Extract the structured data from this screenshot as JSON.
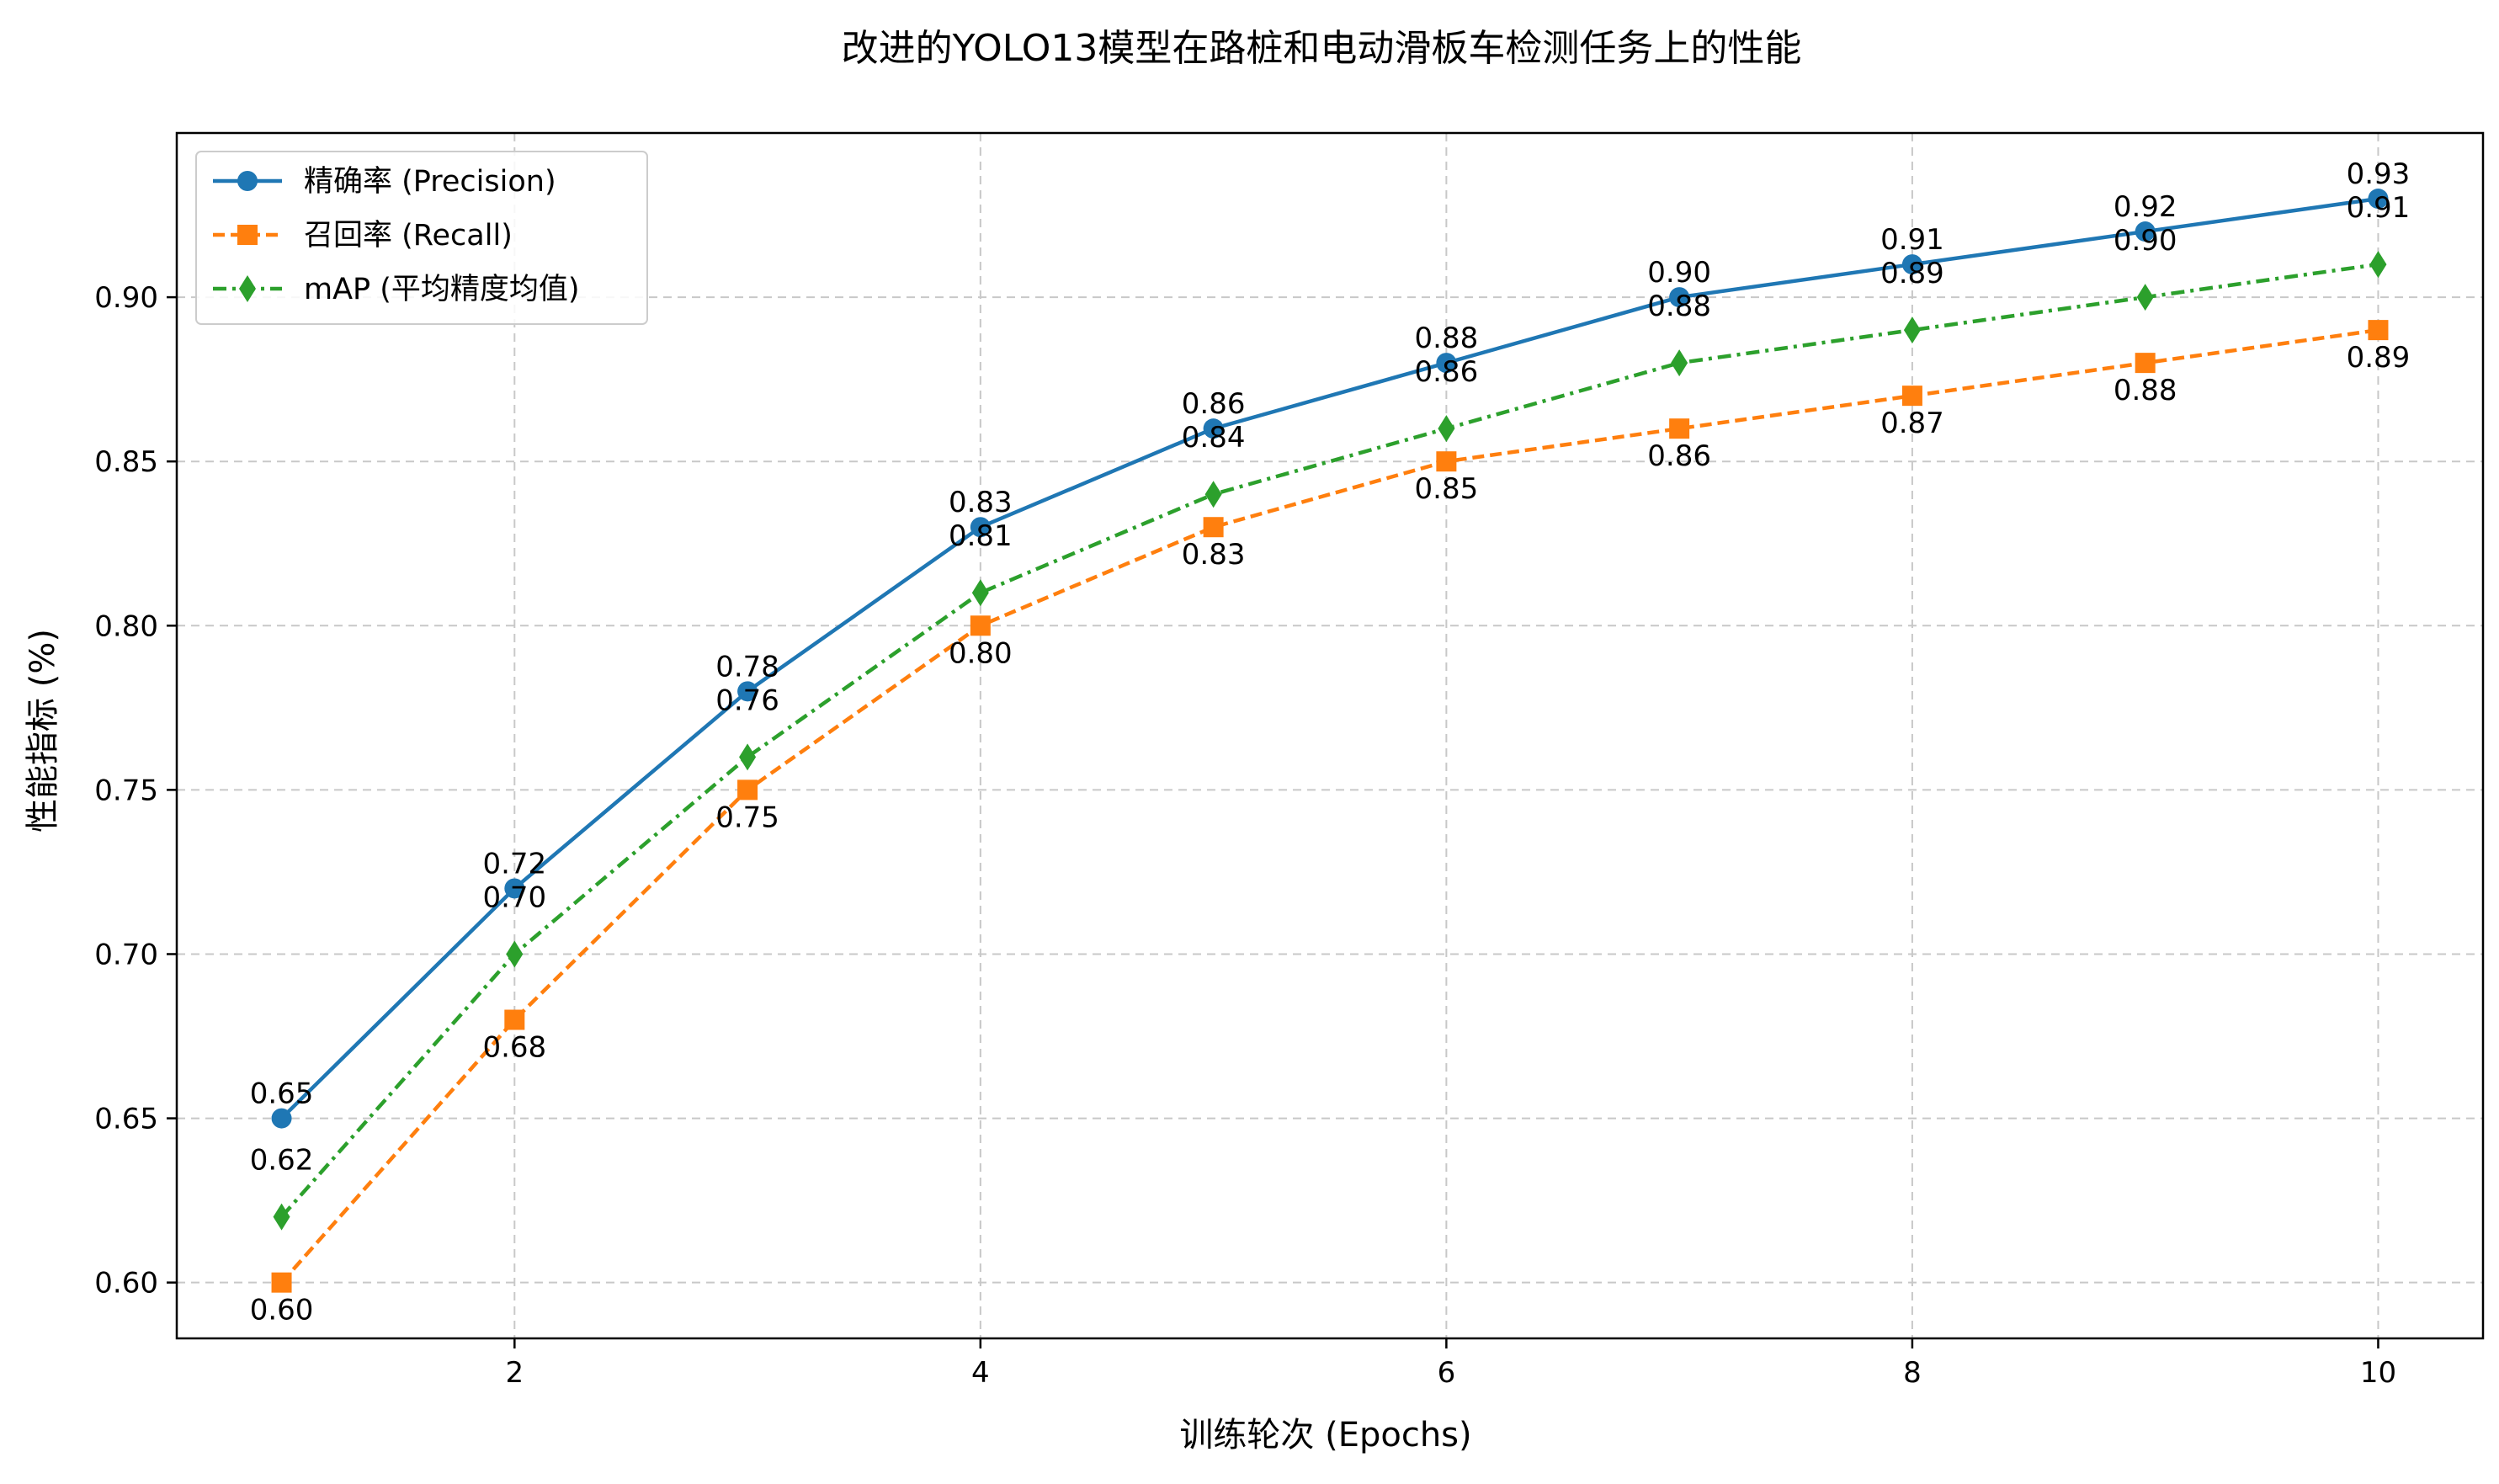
{
  "chart_data": {
    "type": "line",
    "title": "改进的YOLO13模型在路桩和电动滑板车检测任务上的性能",
    "xlabel": "训练轮次 (Epochs)",
    "ylabel": "性能指标 (%)",
    "x": [
      1,
      2,
      3,
      4,
      5,
      6,
      7,
      8,
      9,
      10
    ],
    "xlim": [
      0.55,
      10.45
    ],
    "ylim": [
      0.583,
      0.95
    ],
    "xticks": [
      2,
      4,
      6,
      8,
      10
    ],
    "yticks": [
      0.6,
      0.65,
      0.7,
      0.75,
      0.8,
      0.85,
      0.9
    ],
    "xtick_labels": [
      "2",
      "4",
      "6",
      "8",
      "10"
    ],
    "ytick_labels": [
      "0.60",
      "0.65",
      "0.70",
      "0.75",
      "0.80",
      "0.85",
      "0.90"
    ],
    "grid": true,
    "legend_position": "top-left",
    "series": [
      {
        "name": "精确率 (Precision)",
        "values": [
          0.65,
          0.72,
          0.78,
          0.83,
          0.86,
          0.88,
          0.9,
          0.91,
          0.92,
          0.93
        ],
        "labels": [
          "0.65",
          "0.72",
          "0.78",
          "0.83",
          "0.86",
          "0.88",
          "0.90",
          "0.91",
          "0.92",
          "0.93"
        ],
        "color": "#1f77b4",
        "marker": "circle",
        "linestyle": "solid",
        "label_side": "above"
      },
      {
        "name": "召回率 (Recall)",
        "values": [
          0.6,
          0.68,
          0.75,
          0.8,
          0.83,
          0.85,
          0.86,
          0.87,
          0.88,
          0.89
        ],
        "labels": [
          "0.60",
          "0.68",
          "0.75",
          "0.80",
          "0.83",
          "0.85",
          "0.86",
          "0.87",
          "0.88",
          "0.89"
        ],
        "color": "#ff7f0e",
        "marker": "square",
        "linestyle": "dashed",
        "label_side": "below"
      },
      {
        "name": "mAP (平均精度均值)",
        "values": [
          0.62,
          0.7,
          0.76,
          0.81,
          0.84,
          0.86,
          0.88,
          0.89,
          0.9,
          0.91
        ],
        "labels": [
          "0.62",
          "0.70",
          "0.76",
          "0.81",
          "0.84",
          "0.86",
          "0.88",
          "0.89",
          "0.90",
          "0.91"
        ],
        "color": "#2ca02c",
        "marker": "diamond",
        "linestyle": "dashdot",
        "label_side": "above-offset"
      }
    ]
  }
}
